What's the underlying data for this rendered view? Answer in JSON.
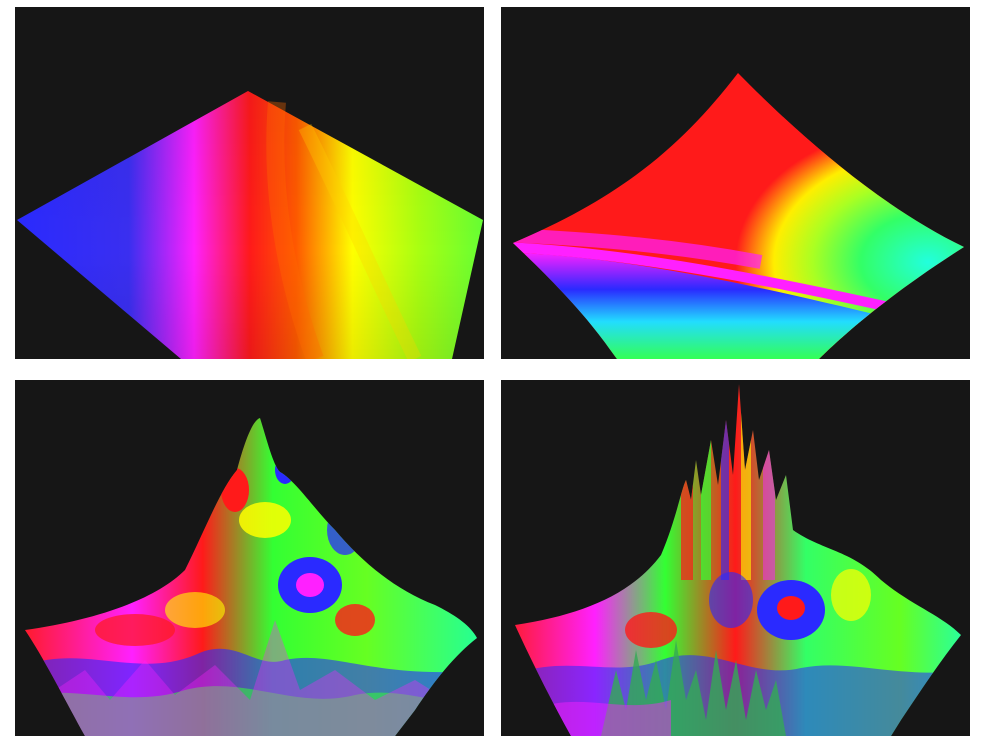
{
  "figure": {
    "background": "#ffffff",
    "panel_background": "#161616",
    "palette": [
      "#2a2aff",
      "#ff20ff",
      "#ff1a1a",
      "#ffff00",
      "#33ff22",
      "#22ffdd",
      "#2266ff"
    ],
    "panels": [
      {
        "id": "surface-flat-gradient",
        "kind": "flat phase-colored plane"
      },
      {
        "id": "surface-curved-saddle",
        "kind": "curved phase-colored sheet"
      },
      {
        "id": "surface-mountain",
        "kind": "bumpy phase-colored terrain"
      },
      {
        "id": "surface-spiky-mountain",
        "kind": "spiky phase-colored terrain"
      }
    ]
  }
}
